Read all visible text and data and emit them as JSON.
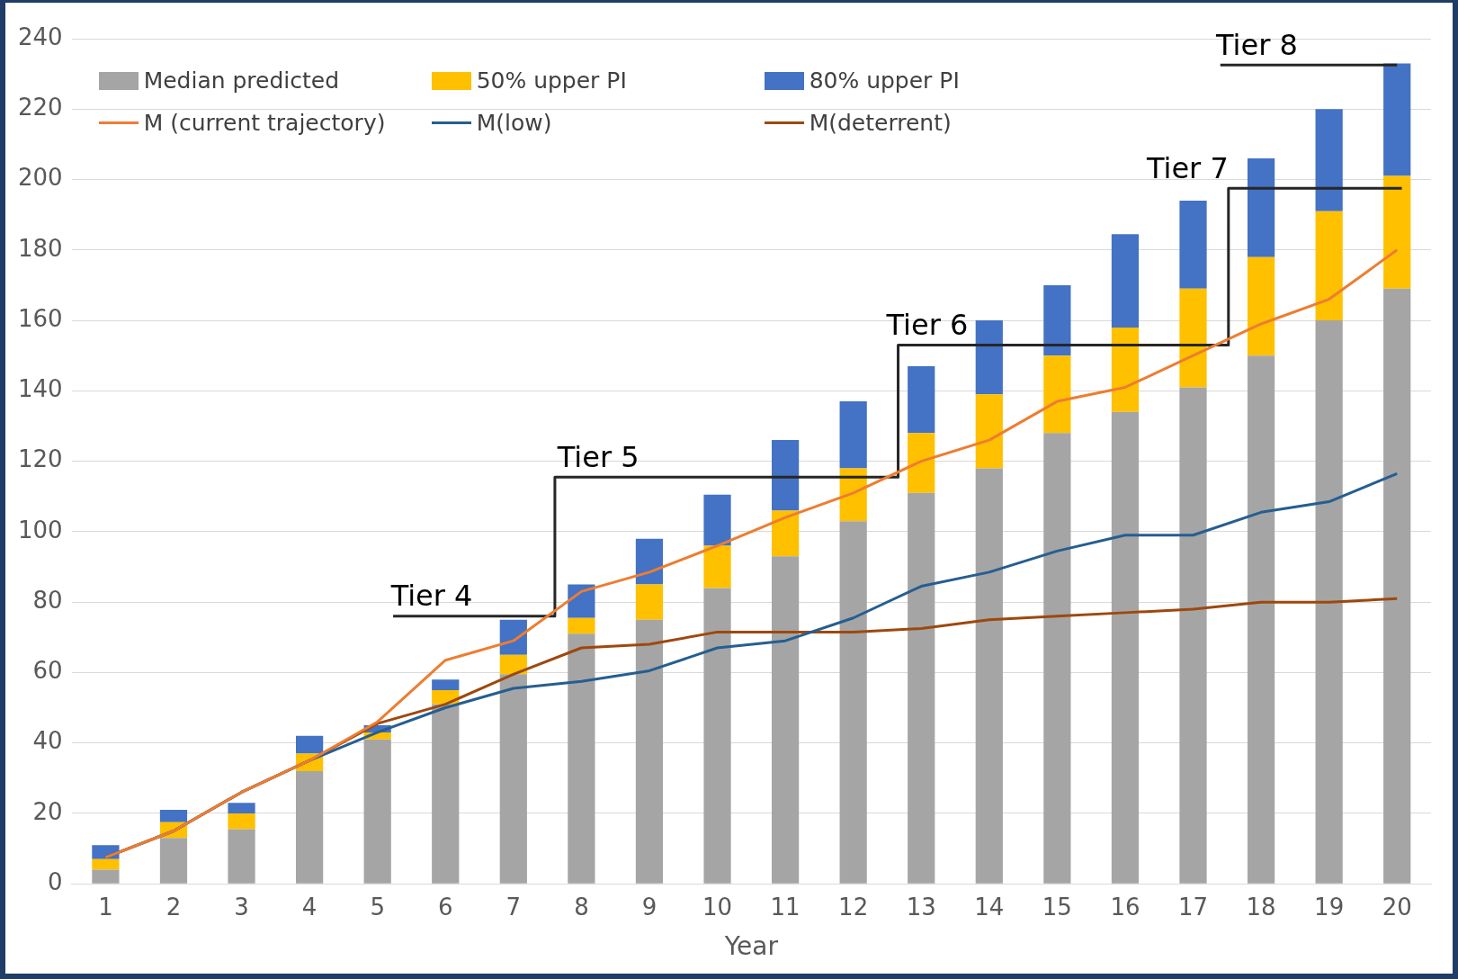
{
  "chart_data": {
    "type": "bar",
    "stacked": true,
    "xlabel": "Year",
    "x": [
      1,
      2,
      3,
      4,
      5,
      6,
      7,
      8,
      9,
      10,
      11,
      12,
      13,
      14,
      15,
      16,
      17,
      18,
      19,
      20
    ],
    "xlim": [
      0.5,
      20.5
    ],
    "xticks": [
      1,
      2,
      3,
      4,
      5,
      6,
      7,
      8,
      9,
      10,
      11,
      12,
      13,
      14,
      15,
      16,
      17,
      18,
      19,
      20
    ],
    "ylim": [
      0,
      240
    ],
    "yticks": [
      0,
      20,
      40,
      60,
      80,
      100,
      120,
      140,
      160,
      180,
      200,
      220,
      240
    ],
    "grid": "y",
    "legend": "top left",
    "marker": "none",
    "series": [
      {
        "name": "Median predicted",
        "color": "#a5a5a5",
        "values": [
          4,
          13,
          15.5,
          32,
          41,
          51,
          59.5,
          71,
          75,
          84,
          93,
          103,
          111,
          118,
          128,
          134,
          141,
          150,
          160,
          169
        ]
      },
      {
        "name": "50% upper PI",
        "color": "#ffc000",
        "values": [
          3,
          4.5,
          4.5,
          5,
          2,
          4,
          5.5,
          4.5,
          10,
          12,
          13,
          15,
          17,
          21,
          22,
          24,
          28,
          28,
          31,
          32
        ]
      },
      {
        "name": "80% upper PI",
        "color": "#4472c4",
        "values": [
          4,
          3.5,
          3,
          5,
          2,
          3,
          10,
          9.5,
          13,
          14.5,
          20,
          19,
          19,
          21,
          20,
          26.5,
          25,
          28,
          29,
          32
        ]
      },
      {
        "name": "M (current trajectory)",
        "type": "line",
        "color": "#ed7d31",
        "values": [
          7.5,
          15,
          26,
          35,
          46,
          63.5,
          69,
          83,
          88.5,
          96,
          104,
          111,
          120,
          126,
          137,
          141,
          150,
          159,
          166,
          180
        ]
      },
      {
        "name": "M(low)",
        "type": "line",
        "color": "#255e91",
        "values": [
          7.5,
          15,
          26,
          35,
          43,
          50,
          55.5,
          57.5,
          60.5,
          67,
          69,
          75.5,
          84.5,
          88.5,
          94.5,
          99,
          99,
          105.5,
          108.5,
          116.5
        ]
      },
      {
        "name": "M(deterrent)",
        "type": "line",
        "color": "#9e480e",
        "values": [
          7.5,
          15,
          26,
          35,
          45.5,
          51,
          59.5,
          67,
          68,
          71.5,
          71.5,
          71.5,
          72.5,
          75,
          76,
          77,
          78,
          80,
          80,
          81
        ]
      },
      {
        "type": "line",
        "color": "#262626",
        "x": [
          5.23,
          7.61,
          7.61,
          12.66,
          12.66,
          17.52,
          17.52,
          20.07
        ],
        "values": [
          76,
          76,
          115.5,
          115.5,
          153,
          153,
          197.5,
          197.5
        ]
      },
      {
        "type": "line",
        "color": "#262626",
        "x": [
          17.4,
          20
        ],
        "values": [
          232.5,
          232.5
        ]
      }
    ],
    "annotations": [
      {
        "text": "Tier 4",
        "x": 6.4,
        "y": 76
      },
      {
        "text": "Tier 5",
        "x": 8.85,
        "y": 115.5
      },
      {
        "text": "Tier 6",
        "x": 13.69,
        "y": 153
      },
      {
        "text": "Tier 7",
        "x": 17.52,
        "y": 197.5
      },
      {
        "text": "Tier 8",
        "x": 18.54,
        "y": 232.5
      }
    ]
  }
}
